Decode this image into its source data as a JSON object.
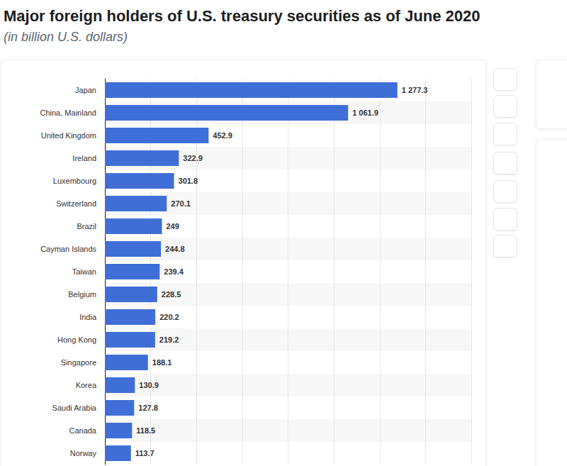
{
  "chart_data": {
    "type": "bar",
    "orientation": "horizontal",
    "title": "Major foreign holders of U.S. treasury securities as of June 2020",
    "subtitle": "(in billion U.S. dollars)",
    "categories": [
      "Japan",
      "China, Mainland",
      "United Kingdom",
      "Ireland",
      "Luxembourg",
      "Switzerland",
      "Brazil",
      "Cayman Islands",
      "Taiwan",
      "Belgium",
      "India",
      "Hong Kong",
      "Singapore",
      "Korea",
      "Saudi Arabia",
      "Canada",
      "Norway"
    ],
    "values": [
      1277.3,
      1061.9,
      452.9,
      322.9,
      301.8,
      270.1,
      249,
      244.8,
      239.4,
      228.5,
      220.2,
      219.2,
      188.1,
      130.9,
      127.8,
      118.5,
      113.7
    ],
    "value_labels": [
      "1 277.3",
      "1 061.9",
      "452.9",
      "322.9",
      "301.8",
      "270.1",
      "249",
      "244.8",
      "239.4",
      "228.5",
      "220.2",
      "219.2",
      "188.1",
      "130.9",
      "127.8",
      "118.5",
      "113.7"
    ],
    "color": "#3f6fd6",
    "xlim": [
      0,
      1600
    ],
    "xticks": [
      0,
      200,
      400,
      600,
      800,
      1000,
      1200,
      1400,
      1600
    ],
    "grid": true,
    "data_labels": true,
    "tick_labels": false
  }
}
